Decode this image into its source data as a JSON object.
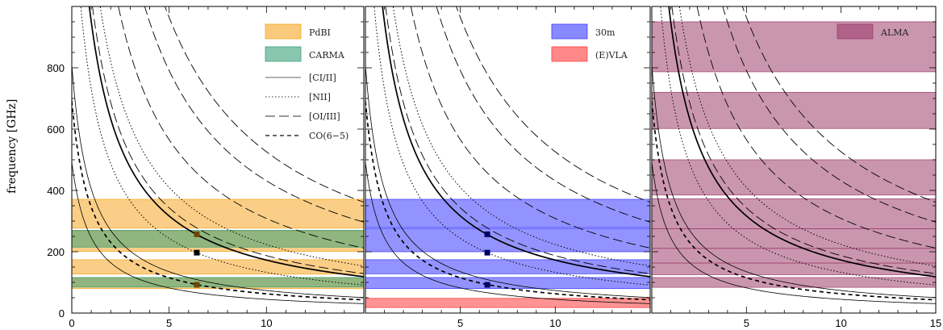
{
  "chart_data": {
    "type": "line",
    "ylabel": "frequency [GHz]",
    "ylim": [
      0,
      1000
    ],
    "y_ticks": [
      0,
      200,
      400,
      600,
      800
    ],
    "grid": false,
    "panels": [
      {
        "xlim": [
          0,
          15
        ],
        "x_ticks": [
          0,
          5,
          10
        ],
        "bands": [
          {
            "name": "PdBI",
            "color": "#f5a623",
            "ranges": [
              [
                80,
                116
              ],
              [
                127,
                174
              ],
              [
                201,
                267
              ],
              [
                277,
                371
              ]
            ]
          },
          {
            "name": "CARMA",
            "color": "#3aa07a",
            "ranges": [
              [
                85,
                116
              ],
              [
                215,
                270
              ]
            ]
          }
        ],
        "markers": [
          [
            6.42,
            257
          ],
          [
            6.42,
            197
          ],
          [
            6.42,
            92
          ]
        ],
        "legend": [
          {
            "label": "PdBI",
            "kind": "band",
            "color": "#f5a623"
          },
          {
            "label": "CARMA",
            "kind": "band",
            "color": "#3aa07a"
          },
          {
            "label": "[CI/II]",
            "kind": "line",
            "style": "solid"
          },
          {
            "label": "[NII]",
            "kind": "line",
            "style": "dotted"
          },
          {
            "label": "[OI/III]",
            "kind": "line",
            "style": "longdash"
          },
          {
            "label": "CO(6−5)",
            "kind": "line",
            "style": "dash"
          }
        ]
      },
      {
        "xlim": [
          0,
          15
        ],
        "x_ticks": [
          5,
          10
        ],
        "bands": [
          {
            "name": "30m",
            "color": "#3b3bff",
            "ranges": [
              [
                80,
                116
              ],
              [
                128,
                174
              ],
              [
                200,
                276
              ],
              [
                279,
                371
              ]
            ]
          },
          {
            "name": "(E)VLA",
            "color": "#ff3b3b",
            "ranges": [
              [
                18,
                48
              ]
            ]
          }
        ],
        "markers": [
          [
            6.42,
            257
          ],
          [
            6.42,
            197
          ],
          [
            6.42,
            92
          ]
        ],
        "legend": [
          {
            "label": "30m",
            "kind": "band",
            "color": "#3b3bff"
          },
          {
            "label": "(E)VLA",
            "kind": "band",
            "color": "#ff3b3b"
          }
        ]
      },
      {
        "xlim": [
          0,
          15
        ],
        "x_ticks": [
          5,
          10,
          15
        ],
        "bands": [
          {
            "name": "ALMA",
            "color": "#9e3f6e",
            "ranges": [
              [
                84,
                116
              ],
              [
                125,
                163
              ],
              [
                163,
                211
              ],
              [
                211,
                275
              ],
              [
                275,
                373
              ],
              [
                385,
                500
              ],
              [
                602,
                720
              ],
              [
                787,
                950
              ]
            ]
          }
        ],
        "markers": [],
        "legend": [
          {
            "label": "ALMA",
            "kind": "band",
            "color": "#9e3f6e"
          }
        ]
      }
    ],
    "curves": [
      {
        "line": "[CI/II]",
        "style": "solid",
        "rest_ghz": 492
      },
      {
        "line": "[CI/II]",
        "style": "solid",
        "rest_ghz": 809
      },
      {
        "line": "[CI/II]",
        "style": "solid",
        "rest_ghz": 1900
      },
      {
        "line": "[NII]",
        "style": "dotted",
        "rest_ghz": 1461
      },
      {
        "line": "[NII]",
        "style": "dotted",
        "rest_ghz": 2459
      },
      {
        "line": "[OI/III]",
        "style": "longdash",
        "rest_ghz": 3393
      },
      {
        "line": "[OI/III]",
        "style": "longdash",
        "rest_ghz": 4745
      },
      {
        "line": "[OI/III]",
        "style": "longdash",
        "rest_ghz": 5786
      },
      {
        "line": "[OI/III]",
        "style": "longdash",
        "rest_ghz": 2060
      },
      {
        "line": "CO(6−5)",
        "style": "dash",
        "rest_ghz": 691
      }
    ]
  }
}
